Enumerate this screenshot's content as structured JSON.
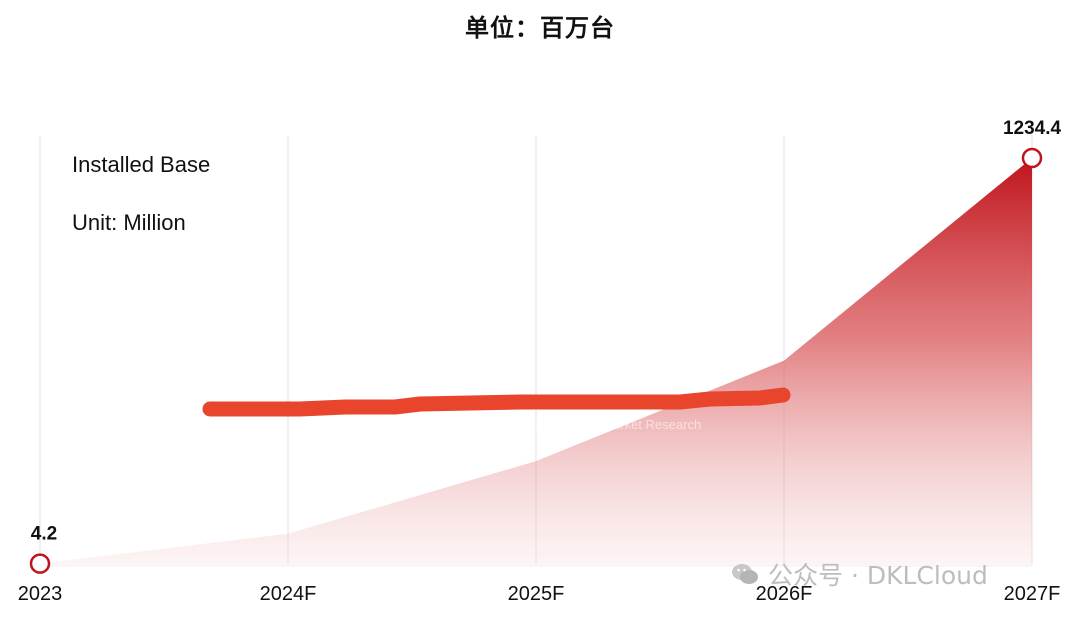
{
  "title": "单位：百万台",
  "inset": {
    "line1": "Installed Base",
    "line2": "Unit: Million"
  },
  "watermark": {
    "text": "公众号 · DKLCloud",
    "icon": "wechat-icon",
    "faint_text": "Technology Market Research"
  },
  "colors": {
    "accent": "#c0141c",
    "scribble": "#e8452c",
    "grid": "#e2e2e2"
  },
  "chart_data": {
    "type": "area",
    "categories": [
      "2023",
      "2024F",
      "2025F",
      "2026F",
      "2027F"
    ],
    "values": [
      4.2,
      95,
      315,
      620,
      1234.4
    ],
    "labeled_points": [
      {
        "category": "2023",
        "label": "4.2"
      },
      {
        "category": "2027F",
        "label": "1234.4"
      }
    ],
    "ylim": [
      0,
      1234.4
    ],
    "grid": "vertical",
    "legend": "none"
  }
}
